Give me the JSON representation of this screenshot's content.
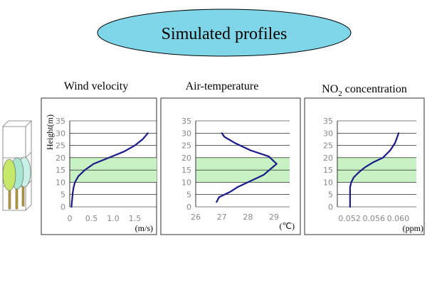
{
  "header": {
    "title": "Simulated profiles"
  },
  "colors": {
    "title_fill": "#7fd6e8",
    "band": "#c9f2c4",
    "line": "#1a1a8a",
    "axis_text": "#888888"
  },
  "chart_data": [
    {
      "type": "line",
      "title": "Wind velocity",
      "ylabel": "Height(m)",
      "xlabel": "(m/s)",
      "xlim": [
        0,
        2.0
      ],
      "ylim": [
        0,
        35
      ],
      "x_ticks": [
        0,
        0.5,
        1.0,
        1.5
      ],
      "x_tick_labels": [
        "0",
        "0.5",
        "1.0",
        "1.5"
      ],
      "y_ticks": [
        0,
        5,
        10,
        15,
        20,
        25,
        30,
        35
      ],
      "highlight_band": [
        10,
        20
      ],
      "series": [
        {
          "x": [
            0.04,
            0.05,
            0.06,
            0.07,
            0.09,
            0.12,
            0.2,
            0.35,
            0.55,
            0.9,
            1.25,
            1.5,
            1.68,
            1.8
          ],
          "y": [
            0,
            2,
            4,
            6,
            8,
            10,
            12.5,
            15,
            17.5,
            20,
            22.5,
            25,
            27.5,
            30
          ]
        }
      ]
    },
    {
      "type": "line",
      "title": "Air-temperature",
      "xlabel": "(℃)",
      "xlim": [
        26,
        29.6
      ],
      "ylim": [
        0,
        35
      ],
      "x_ticks": [
        26,
        27,
        28,
        29
      ],
      "x_tick_labels": [
        "26",
        "27",
        "28",
        "29"
      ],
      "y_ticks": [
        0,
        5,
        10,
        15,
        20,
        25,
        30,
        35
      ],
      "highlight_band": [
        10,
        20
      ],
      "series": [
        {
          "x": [
            26.8,
            26.9,
            27.3,
            27.6,
            28.0,
            28.6,
            29.1,
            28.8,
            28.1,
            27.5,
            27.1,
            27.0
          ],
          "y": [
            2,
            4,
            6,
            8,
            10,
            13,
            17.5,
            20.5,
            23,
            26,
            28.5,
            30
          ]
        }
      ]
    },
    {
      "type": "line",
      "title": "NO2 concentration",
      "xlabel": "(ppm)",
      "xlim": [
        0.05,
        0.063
      ],
      "ylim": [
        0,
        35
      ],
      "x_ticks": [
        0.052,
        0.056,
        0.06
      ],
      "x_tick_labels": [
        "0.052",
        "0.056",
        "0.060"
      ],
      "y_ticks": [
        0,
        5,
        10,
        15,
        20,
        25,
        30,
        35
      ],
      "highlight_band": [
        10,
        20
      ],
      "series": [
        {
          "x": [
            0.0521,
            0.0521,
            0.0521,
            0.0521,
            0.0521,
            0.0523,
            0.0527,
            0.0535,
            0.0545,
            0.0558,
            0.0575,
            0.0587,
            0.0595,
            0.0601
          ],
          "y": [
            0,
            2,
            4,
            6,
            8,
            10,
            12,
            14,
            16,
            18,
            20,
            23,
            26,
            30
          ]
        }
      ]
    }
  ]
}
